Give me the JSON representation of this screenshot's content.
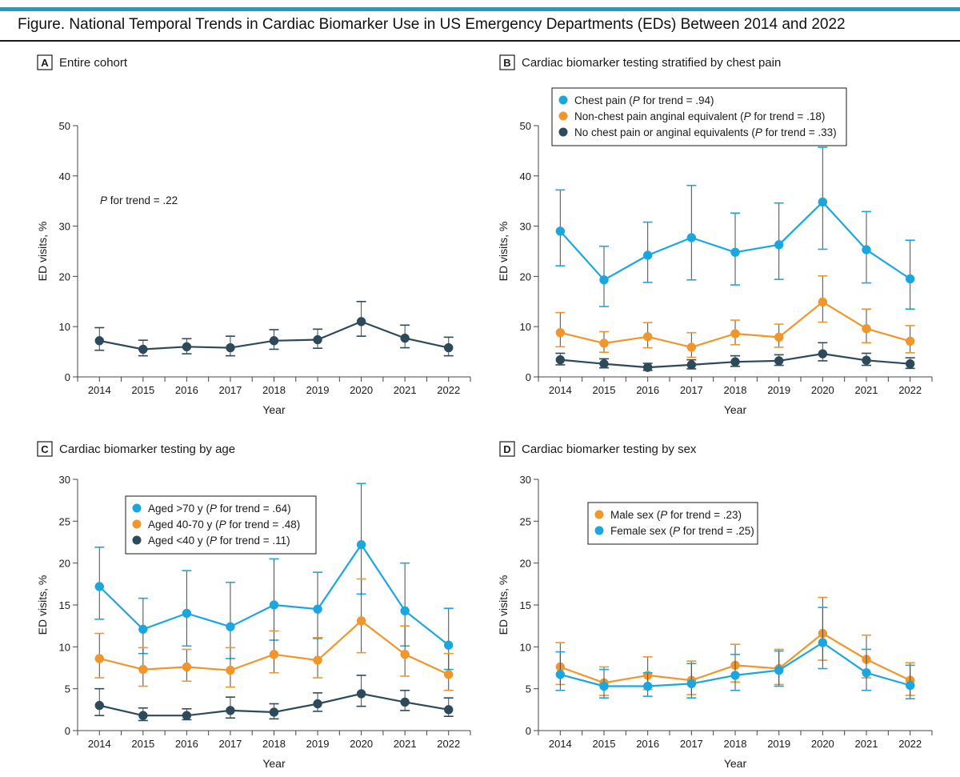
{
  "figure_title": "Figure. National Temporal Trends in Cardiac Biomarker Use in US Emergency Departments (EDs) Between 2014 and 2022",
  "colors": {
    "dark": "#2c4a5a",
    "blue": "#1aa7e0",
    "orange": "#f0962a",
    "accent": "#1aa0c8"
  },
  "chart_data": [
    {
      "id": "A",
      "type": "line",
      "panel_letter": "A",
      "title": "Entire cohort",
      "xlabel": "Year",
      "ylabel": "ED visits, %",
      "ylim": [
        0,
        50
      ],
      "yticks": [
        0,
        10,
        20,
        30,
        40,
        50
      ],
      "categories": [
        "2014",
        "2015",
        "2016",
        "2017",
        "2018",
        "2019",
        "2020",
        "2021",
        "2022"
      ],
      "annotation": {
        "italic": "P",
        "text": " for trend = .22"
      },
      "series": [
        {
          "name": "Entire cohort",
          "color": "dark",
          "values": [
            7.2,
            5.5,
            6.0,
            5.8,
            7.2,
            7.4,
            11.0,
            7.7,
            5.8
          ],
          "lower": [
            5.3,
            4.2,
            4.6,
            4.2,
            5.5,
            5.7,
            8.1,
            5.8,
            4.2
          ],
          "upper": [
            9.8,
            7.3,
            7.6,
            8.1,
            9.4,
            9.5,
            15.0,
            10.3,
            7.9
          ]
        }
      ]
    },
    {
      "id": "B",
      "type": "line",
      "panel_letter": "B",
      "title": "Cardiac biomarker testing stratified by chest pain",
      "xlabel": "Year",
      "ylabel": "ED visits, %",
      "ylim": [
        0,
        50
      ],
      "yticks": [
        0,
        10,
        20,
        30,
        40,
        50
      ],
      "categories": [
        "2014",
        "2015",
        "2016",
        "2017",
        "2018",
        "2019",
        "2020",
        "2021",
        "2022"
      ],
      "legend_position": "top-left",
      "series": [
        {
          "name": "Chest pain",
          "trend": " for trend = .94)",
          "color": "blue",
          "values": [
            29.0,
            19.3,
            24.2,
            27.7,
            24.8,
            26.3,
            34.8,
            25.3,
            19.5
          ],
          "lower": [
            22.1,
            14.0,
            18.8,
            19.3,
            18.3,
            19.4,
            25.4,
            18.7,
            13.5
          ],
          "upper": [
            37.2,
            26.0,
            30.8,
            38.1,
            32.6,
            34.6,
            45.7,
            32.9,
            27.2
          ]
        },
        {
          "name": "Non-chest pain anginal equivalent",
          "trend": " for trend = .18)",
          "color": "orange",
          "values": [
            8.8,
            6.7,
            8.0,
            5.9,
            8.6,
            7.9,
            14.9,
            9.6,
            7.1
          ],
          "lower": [
            6.0,
            4.9,
            5.8,
            3.9,
            6.4,
            5.9,
            10.9,
            6.8,
            4.8
          ],
          "upper": [
            12.8,
            9.0,
            10.8,
            8.8,
            11.3,
            10.5,
            20.1,
            13.5,
            10.2
          ]
        },
        {
          "name": "No chest pain or anginal equivalents",
          "trend": " for trend = .33)",
          "color": "dark",
          "values": [
            3.4,
            2.6,
            1.9,
            2.4,
            3.0,
            3.2,
            4.6,
            3.3,
            2.6
          ],
          "lower": [
            2.4,
            1.8,
            1.3,
            1.6,
            2.1,
            2.3,
            3.2,
            2.3,
            1.7
          ],
          "upper": [
            4.7,
            3.6,
            2.7,
            3.4,
            4.2,
            4.4,
            6.8,
            4.7,
            3.8
          ]
        }
      ]
    },
    {
      "id": "C",
      "type": "line",
      "panel_letter": "C",
      "title": "Cardiac biomarker testing by age",
      "xlabel": "Year",
      "ylabel": "ED visits, %",
      "ylim": [
        0,
        30
      ],
      "yticks": [
        0,
        5,
        10,
        15,
        20,
        25,
        30
      ],
      "categories": [
        "2014",
        "2015",
        "2016",
        "2017",
        "2018",
        "2019",
        "2020",
        "2021",
        "2022"
      ],
      "legend_position": "top-left",
      "series": [
        {
          "name": "Aged >70 y",
          "trend": " for trend = .64)",
          "color": "blue",
          "values": [
            17.2,
            12.1,
            14.0,
            12.4,
            15.0,
            14.5,
            22.2,
            14.3,
            10.2
          ],
          "lower": [
            13.3,
            9.2,
            10.1,
            8.6,
            10.8,
            11.0,
            16.3,
            10.1,
            7.3
          ],
          "upper": [
            21.9,
            15.8,
            19.1,
            17.7,
            20.5,
            18.9,
            29.5,
            20.0,
            14.6
          ]
        },
        {
          "name": "Aged 40-70 y",
          "trend": " for trend = .48)",
          "color": "orange",
          "values": [
            8.6,
            7.3,
            7.6,
            7.2,
            9.1,
            8.4,
            13.1,
            9.1,
            6.7
          ],
          "lower": [
            6.3,
            5.3,
            5.9,
            5.2,
            6.9,
            6.3,
            9.3,
            6.5,
            4.8
          ],
          "upper": [
            11.6,
            9.9,
            9.7,
            9.9,
            11.9,
            11.1,
            18.1,
            12.5,
            9.2
          ]
        },
        {
          "name": "Aged <40 y",
          "trend": " for trend = .11)",
          "color": "dark",
          "values": [
            3.0,
            1.8,
            1.8,
            2.4,
            2.2,
            3.2,
            4.4,
            3.4,
            2.5
          ],
          "lower": [
            1.8,
            1.2,
            1.3,
            1.5,
            1.4,
            2.3,
            2.9,
            2.4,
            1.7
          ],
          "upper": [
            5.0,
            2.7,
            2.6,
            4.0,
            3.2,
            4.5,
            6.6,
            4.8,
            3.9
          ]
        }
      ]
    },
    {
      "id": "D",
      "type": "line",
      "panel_letter": "D",
      "title": "Cardiac biomarker testing by sex",
      "xlabel": "Year",
      "ylabel": "ED visits, %",
      "ylim": [
        0,
        30
      ],
      "yticks": [
        0,
        5,
        10,
        15,
        20,
        25,
        30
      ],
      "categories": [
        "2014",
        "2015",
        "2016",
        "2017",
        "2018",
        "2019",
        "2020",
        "2021",
        "2022"
      ],
      "legend_position": "top-left",
      "series": [
        {
          "name": "Male sex",
          "trend": " for trend = .23)",
          "color": "orange",
          "values": [
            7.6,
            5.7,
            6.6,
            6.0,
            7.8,
            7.4,
            11.6,
            8.5,
            6.0
          ],
          "lower": [
            5.5,
            4.2,
            4.9,
            4.3,
            5.8,
            5.5,
            8.4,
            6.3,
            4.2
          ],
          "upper": [
            10.5,
            7.6,
            8.8,
            8.3,
            10.3,
            9.7,
            15.9,
            11.4,
            8.1
          ]
        },
        {
          "name": "Female sex",
          "trend": " for trend = .25)",
          "color": "blue",
          "values": [
            6.7,
            5.3,
            5.3,
            5.6,
            6.6,
            7.2,
            10.5,
            6.9,
            5.4
          ],
          "lower": [
            4.8,
            3.9,
            4.1,
            3.9,
            4.8,
            5.3,
            7.4,
            4.8,
            3.8
          ],
          "upper": [
            9.4,
            7.3,
            6.9,
            8.0,
            9.1,
            9.5,
            14.7,
            9.7,
            7.8
          ]
        }
      ]
    }
  ]
}
